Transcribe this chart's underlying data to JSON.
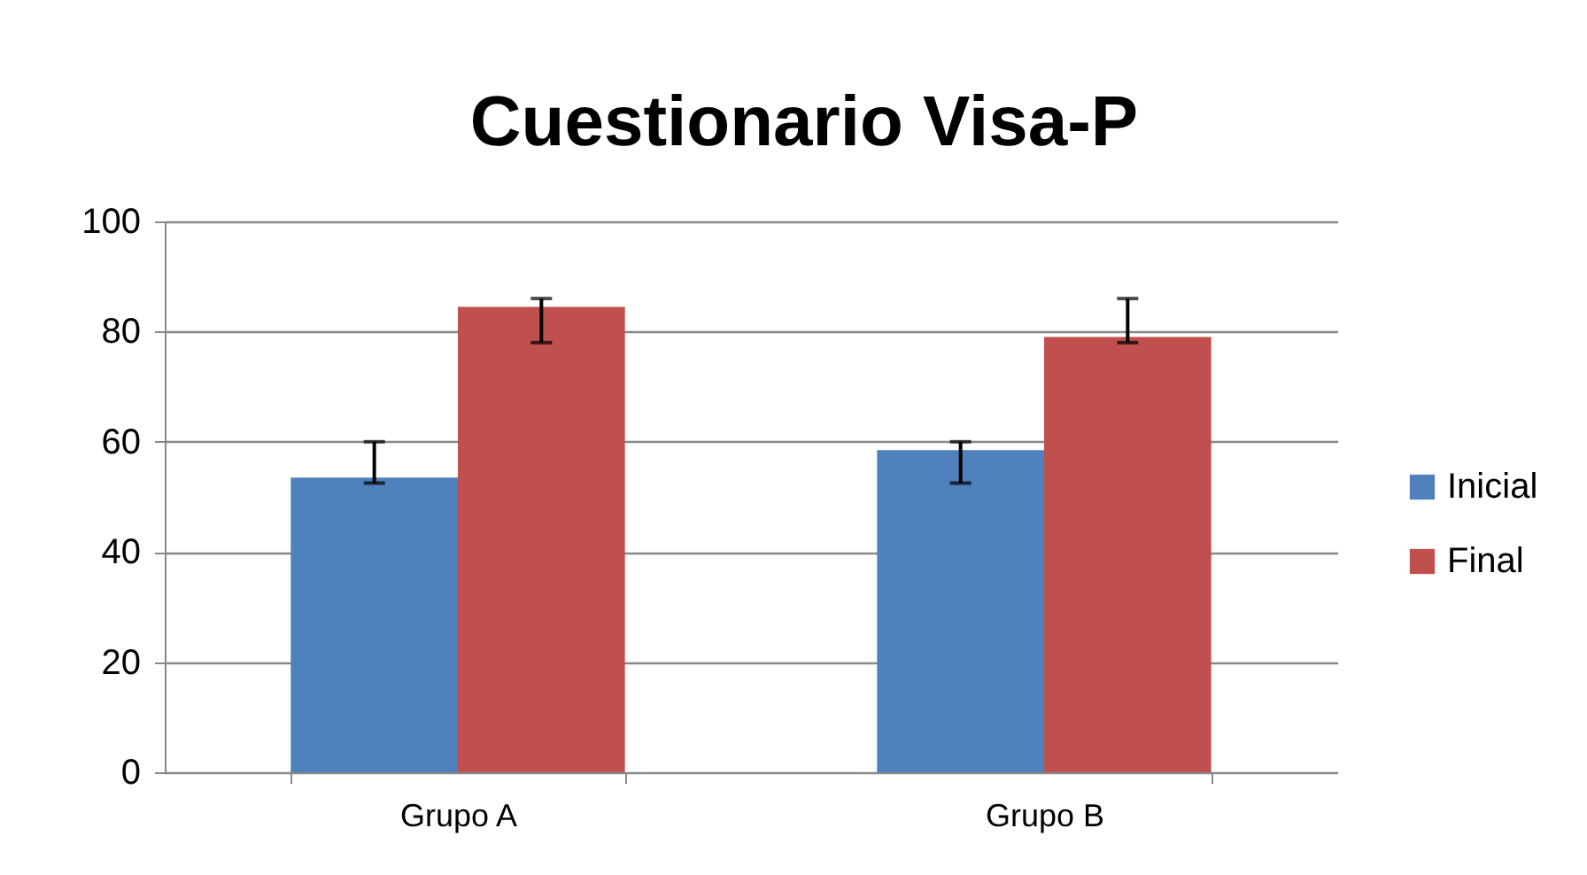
{
  "chart_data": {
    "type": "bar",
    "title": "Cuestionario Visa-P",
    "categories": [
      "Grupo A",
      "Grupo B"
    ],
    "series": [
      {
        "name": "Inicial",
        "color": "#4f81bd",
        "values": [
          53.5,
          58.5
        ],
        "errors": [
          [
            52.5,
            60
          ],
          [
            52.5,
            60
          ]
        ]
      },
      {
        "name": "Final",
        "color": "#c0504d",
        "values": [
          84.5,
          79
        ],
        "errors": [
          [
            78,
            86
          ],
          [
            78,
            86
          ]
        ]
      }
    ],
    "ylim": [
      0,
      100
    ],
    "yticks": [
      0,
      20,
      40,
      60,
      80,
      100
    ],
    "grid": "y",
    "legend": "right"
  }
}
